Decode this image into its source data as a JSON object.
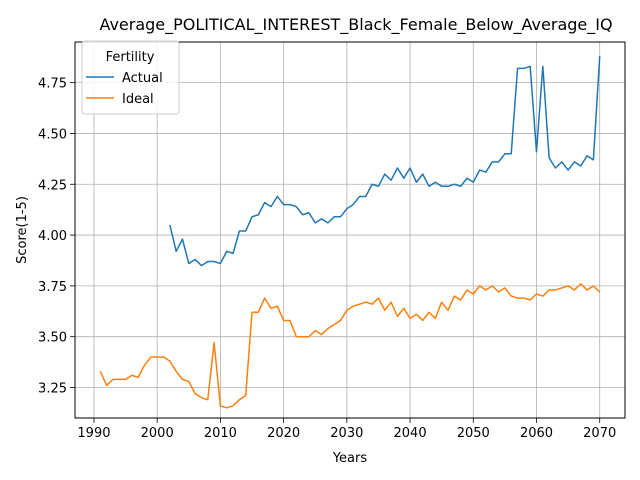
{
  "chart_data": {
    "type": "line",
    "title": "Average_POLITICAL_INTEREST_Black_Female_Below_Average_IQ",
    "xlabel": "Years",
    "ylabel": "Score(1-5)",
    "xlim": [
      1987,
      2074
    ],
    "ylim": [
      3.1,
      4.95
    ],
    "xticks": [
      1990,
      2000,
      2010,
      2020,
      2030,
      2040,
      2050,
      2060,
      2070
    ],
    "yticks": [
      3.25,
      3.5,
      3.75,
      4.0,
      4.25,
      4.5,
      4.75
    ],
    "grid": true,
    "legend": {
      "title": "Fertility",
      "position": "upper left"
    },
    "series": [
      {
        "name": "Actual",
        "color": "#1f77b4",
        "x": [
          2002,
          2003,
          2004,
          2005,
          2006,
          2007,
          2008,
          2009,
          2010,
          2011,
          2012,
          2013,
          2014,
          2015,
          2016,
          2017,
          2018,
          2019,
          2020,
          2021,
          2022,
          2023,
          2024,
          2025,
          2026,
          2027,
          2028,
          2029,
          2030,
          2031,
          2032,
          2033,
          2034,
          2035,
          2036,
          2037,
          2038,
          2039,
          2040,
          2041,
          2042,
          2043,
          2044,
          2045,
          2046,
          2047,
          2048,
          2049,
          2050,
          2051,
          2052,
          2053,
          2054,
          2055,
          2056,
          2057,
          2058,
          2059,
          2060,
          2061,
          2062,
          2063,
          2064,
          2065,
          2066,
          2067,
          2068,
          2069,
          2070
        ],
        "values": [
          4.05,
          3.92,
          3.98,
          3.86,
          3.88,
          3.85,
          3.87,
          3.87,
          3.86,
          3.92,
          3.91,
          4.02,
          4.02,
          4.09,
          4.1,
          4.16,
          4.14,
          4.19,
          4.15,
          4.15,
          4.14,
          4.1,
          4.11,
          4.06,
          4.08,
          4.06,
          4.09,
          4.09,
          4.13,
          4.15,
          4.19,
          4.19,
          4.25,
          4.24,
          4.3,
          4.27,
          4.33,
          4.28,
          4.33,
          4.26,
          4.3,
          4.24,
          4.26,
          4.24,
          4.24,
          4.25,
          4.24,
          4.28,
          4.26,
          4.32,
          4.31,
          4.36,
          4.36,
          4.4,
          4.4,
          4.82,
          4.82,
          4.83,
          4.41,
          4.83,
          4.38,
          4.33,
          4.36,
          4.32,
          4.36,
          4.34,
          4.39,
          4.37,
          4.88
        ]
      },
      {
        "name": "Ideal",
        "color": "#ff7f0e",
        "x": [
          1991,
          1992,
          1993,
          1994,
          1995,
          1996,
          1997,
          1998,
          1999,
          2000,
          2001,
          2002,
          2003,
          2004,
          2005,
          2006,
          2007,
          2008,
          2009,
          2010,
          2011,
          2012,
          2013,
          2014,
          2015,
          2016,
          2017,
          2018,
          2019,
          2020,
          2021,
          2022,
          2023,
          2024,
          2025,
          2026,
          2027,
          2028,
          2029,
          2030,
          2031,
          2032,
          2033,
          2034,
          2035,
          2036,
          2037,
          2038,
          2039,
          2040,
          2041,
          2042,
          2043,
          2044,
          2045,
          2046,
          2047,
          2048,
          2049,
          2050,
          2051,
          2052,
          2053,
          2054,
          2055,
          2056,
          2057,
          2058,
          2059,
          2060,
          2061,
          2062,
          2063,
          2064,
          2065,
          2066,
          2067,
          2068,
          2069,
          2070
        ],
        "values": [
          3.33,
          3.26,
          3.29,
          3.29,
          3.29,
          3.31,
          3.3,
          3.36,
          3.4,
          3.4,
          3.4,
          3.38,
          3.33,
          3.29,
          3.28,
          3.22,
          3.2,
          3.19,
          3.47,
          3.16,
          3.15,
          3.16,
          3.19,
          3.21,
          3.62,
          3.62,
          3.69,
          3.64,
          3.65,
          3.58,
          3.58,
          3.5,
          3.5,
          3.5,
          3.53,
          3.51,
          3.54,
          3.56,
          3.58,
          3.63,
          3.65,
          3.66,
          3.67,
          3.66,
          3.69,
          3.63,
          3.67,
          3.6,
          3.64,
          3.59,
          3.61,
          3.58,
          3.62,
          3.59,
          3.67,
          3.63,
          3.7,
          3.68,
          3.73,
          3.71,
          3.75,
          3.73,
          3.75,
          3.72,
          3.74,
          3.7,
          3.69,
          3.69,
          3.68,
          3.71,
          3.7,
          3.73,
          3.73,
          3.74,
          3.75,
          3.73,
          3.76,
          3.73,
          3.75,
          3.72
        ]
      }
    ]
  }
}
